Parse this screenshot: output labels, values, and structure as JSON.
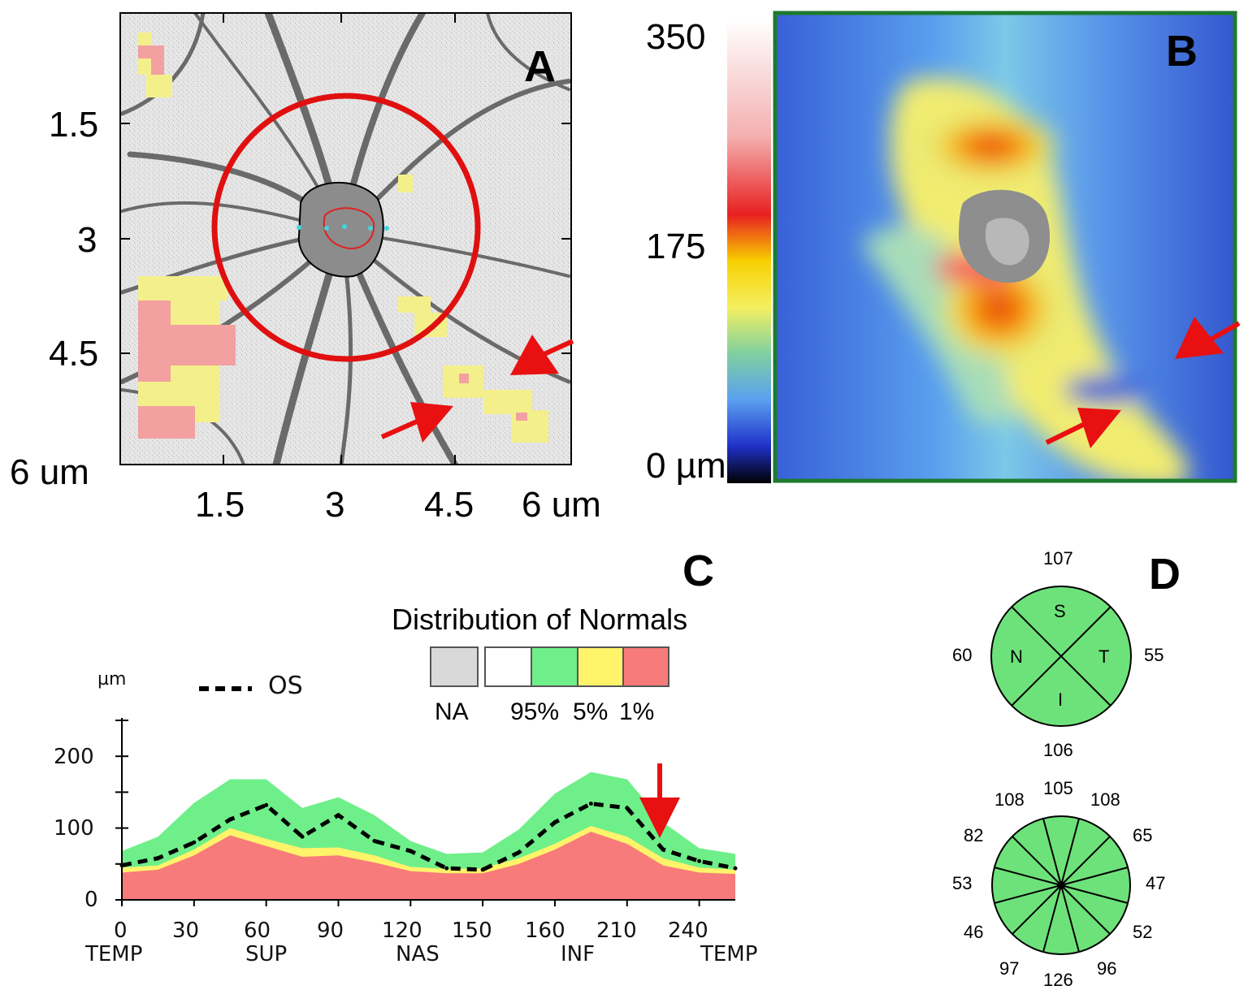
{
  "panelA": {
    "letter": "A",
    "y_ticks": [
      "1.5",
      "3",
      "4.5",
      "6 um"
    ],
    "x_ticks": [
      "1.5",
      "3",
      "4.5",
      "6 um"
    ]
  },
  "panelB": {
    "letter": "B",
    "scale_labels": [
      "350",
      "175",
      "0 µm"
    ],
    "scale_colors": [
      "#ffffff",
      "#f4b0b0",
      "#e82020",
      "#f7d000",
      "#f4f060",
      "#80d0a0",
      "#5aa0f0",
      "#2030c8",
      "#10106a",
      "#000000"
    ]
  },
  "panelC": {
    "letter": "C",
    "legend_title": "Distribution of Normals",
    "legend_labels": [
      "NA",
      "95%",
      "5%",
      "1%"
    ],
    "legend_colors": [
      "#d9d9d9",
      "#ffffff",
      "#6fef8a",
      "#fff36a",
      "#f77b7b"
    ],
    "unit_label": "µm",
    "series_label": "OS",
    "y_ticks": [
      "200",
      "100",
      "0"
    ],
    "x_ticks": [
      "0",
      "30",
      "60",
      "90",
      "120",
      "150",
      "160",
      "210",
      "240"
    ],
    "x_sectors": [
      "TEMP",
      "SUP",
      "NAS",
      "INF",
      "TEMP"
    ],
    "chart_data": {
      "type": "area",
      "x": [
        0,
        15,
        30,
        45,
        60,
        75,
        90,
        105,
        120,
        135,
        150,
        165,
        180,
        195,
        210,
        225,
        240,
        255
      ],
      "series": [
        {
          "name": "OS",
          "values": [
            48,
            58,
            80,
            112,
            132,
            88,
            118,
            82,
            68,
            44,
            42,
            66,
            108,
            134,
            128,
            70,
            54,
            44
          ]
        },
        {
          "name": "95%",
          "values": [
            68,
            88,
            135,
            168,
            168,
            128,
            143,
            118,
            82,
            64,
            66,
            98,
            148,
            178,
            168,
            108,
            72,
            64
          ]
        },
        {
          "name": "5%",
          "values": [
            45,
            48,
            70,
            100,
            85,
            72,
            73,
            62,
            46,
            43,
            44,
            58,
            78,
            103,
            88,
            58,
            45,
            42
          ]
        },
        {
          "name": "1%",
          "values": [
            38,
            42,
            62,
            90,
            75,
            60,
            62,
            52,
            40,
            37,
            37,
            50,
            70,
            95,
            78,
            48,
            38,
            36
          ]
        }
      ],
      "ylim": [
        0,
        250
      ],
      "ylabel": "µm"
    }
  },
  "panelD": {
    "letter": "D",
    "quadrant_values": {
      "top": "107",
      "left": "60",
      "right": "55",
      "bottom": "106"
    },
    "quadrant_labels": {
      "S": "S",
      "N": "N",
      "T": "T",
      "I": "I"
    },
    "clock_values": [
      "105",
      "108",
      "65",
      "47",
      "52",
      "96",
      "126",
      "97",
      "46",
      "53",
      "82",
      "108"
    ],
    "fill_color": "#6ee27a"
  }
}
